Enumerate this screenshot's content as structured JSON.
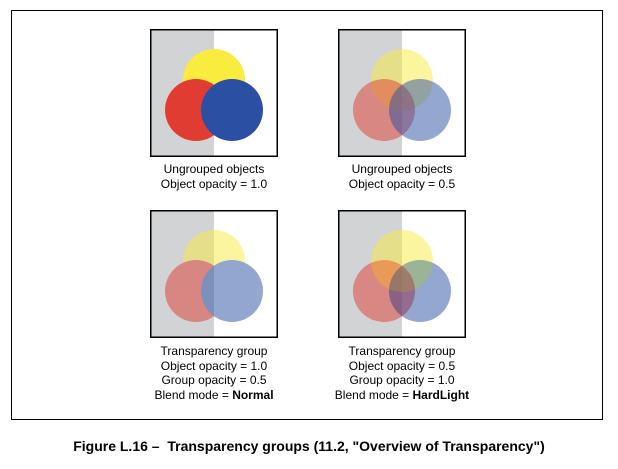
{
  "colors": {
    "gray_half": "#d1d3d4",
    "white_half": "#ffffff",
    "yellow": "#f9ec3f",
    "red": "#e03c31",
    "blue": "#2a4fa3"
  },
  "panels": [
    {
      "caption_lines": [
        "Ungrouped objects",
        "Object opacity = 1.0"
      ]
    },
    {
      "caption_lines": [
        "Ungrouped objects",
        "Object opacity = 0.5"
      ]
    },
    {
      "caption_lines": [
        "Transparency group",
        "Object opacity = 1.0",
        "Group opacity = 0.5"
      ],
      "blend_prefix": "Blend mode = ",
      "blend_value": "Normal"
    },
    {
      "caption_lines": [
        "Transparency group",
        "Object opacity = 0.5",
        "Group opacity = 1.0"
      ],
      "blend_prefix": "Blend mode = ",
      "blend_value": "HardLight"
    }
  ],
  "figure_caption": "Figure L.16 –  Transparency groups (11.2, \"Overview of Transparency\")"
}
